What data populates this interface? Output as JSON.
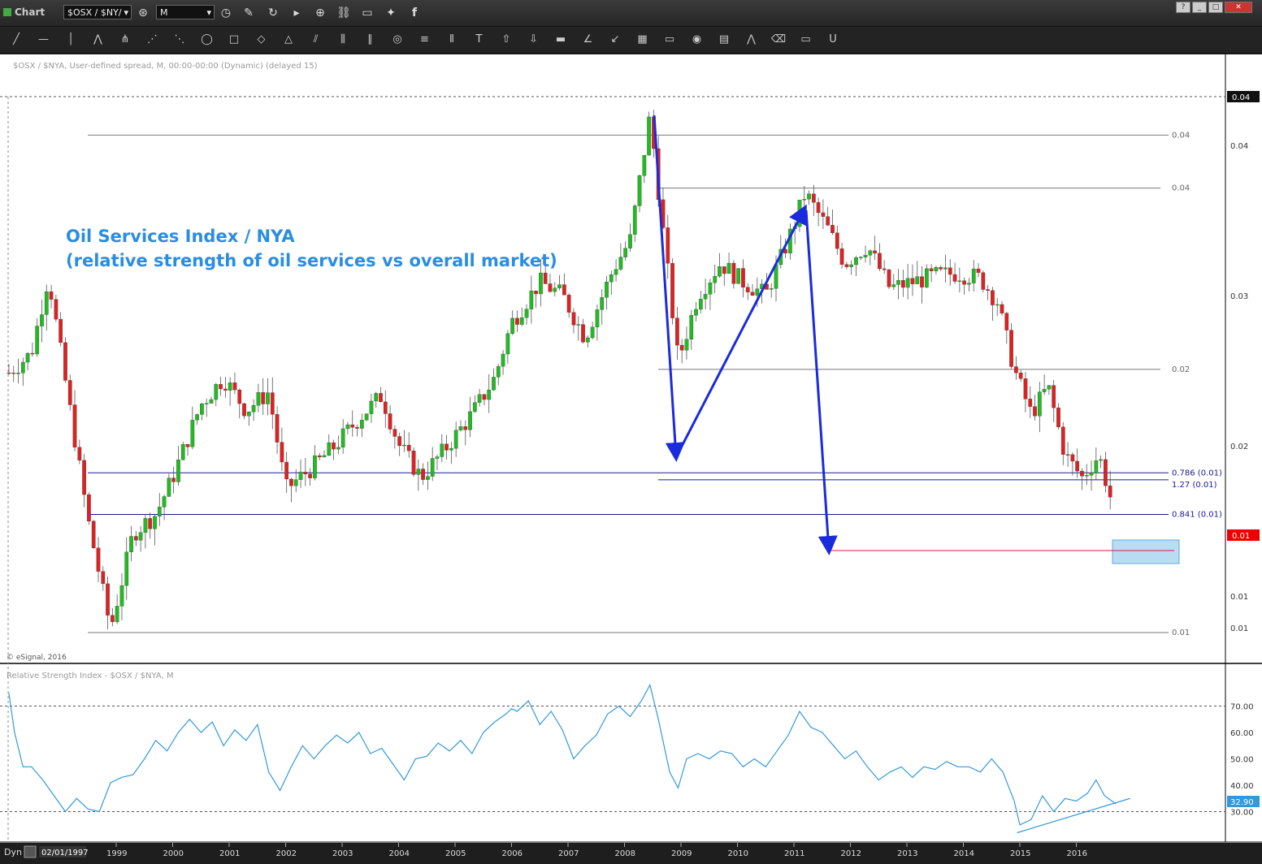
{
  "titlebar": {
    "app": "Chart",
    "symbol": "$OSX / $NY/",
    "interval": "M",
    "help": "?",
    "min": "_",
    "max": "□",
    "close": "✕"
  },
  "toolbar": {
    "tools": [
      "line",
      "horizontal-line",
      "vertical-line",
      "polyline",
      "pitchfork",
      "fan",
      "gann-fan",
      "ellipse",
      "rectangle",
      "eraser-shape",
      "triangle",
      "channel",
      "bars",
      "parallel",
      "circles",
      "levels",
      "cycles",
      "text",
      "arrow-up",
      "arrow-down",
      "fill",
      "angle",
      "regression",
      "grid",
      "mob",
      "eye",
      "pti",
      "zigzag",
      "eraser",
      "comment",
      "magnet"
    ]
  },
  "main_panel": {
    "info": "$OSX / $NYA, User-defined spread, M, 00:00-00:00 (Dynamic) (delayed 15)",
    "annotation_line1": "Oil Services Index / NYA",
    "annotation_line2": "(relative strength of oil services vs overall market)",
    "copyright": "© eSignal, 2016",
    "last_price_label": "0.01",
    "top_label": "0.04"
  },
  "rsi_panel": {
    "info": "Relative Strength Index - $OSX / $NYA, M",
    "last_label": "32.90"
  },
  "footer": {
    "mode": "Dyn",
    "date": "02/01/1997"
  },
  "colors": {
    "up": "#22bb22",
    "down": "#dd2222",
    "rsi": "#3399dd",
    "arrow": "#1a2bdd",
    "annotation": "#2a8ee0",
    "fib": "#777777",
    "fib_blue": "#1a1a99",
    "target": "#a8d4f0"
  },
  "chart_data": [
    {
      "type": "candlestick",
      "title": "",
      "x_ticks": [
        "1999",
        "2000",
        "2001",
        "2002",
        "2003",
        "2004",
        "2005",
        "2006",
        "2007",
        "2008",
        "2009",
        "2010",
        "2011",
        "2012",
        "2013",
        "2014",
        "2015",
        "2016"
      ],
      "y_scale": "log",
      "y_ticks": [
        "0.04",
        "0.04",
        "0.03",
        "0.02",
        "0.01",
        "0.01"
      ],
      "fib_levels": [
        {
          "label": "0.04",
          "value": 0.04
        },
        {
          "label": "0.04",
          "value": 0.034
        },
        {
          "label": "0.02",
          "value": 0.0195
        },
        {
          "label": "0.786 (0.01)",
          "value": 0.0142
        },
        {
          "label": "1.27 (0.01)",
          "value": 0.0139
        },
        {
          "label": "0.841 (0.01)",
          "value": 0.0125
        },
        {
          "label": "0.01",
          "value": 0.0087
        }
      ],
      "series_close": [
        [
          1997.1,
          0.0193
        ],
        [
          1997.5,
          0.0205
        ],
        [
          1997.8,
          0.026
        ],
        [
          1998.1,
          0.0188
        ],
        [
          1998.5,
          0.0123
        ],
        [
          1998.9,
          0.0088
        ],
        [
          1999.3,
          0.0118
        ],
        [
          1999.7,
          0.0125
        ],
        [
          2000.0,
          0.014
        ],
        [
          2000.5,
          0.0175
        ],
        [
          2000.9,
          0.019
        ],
        [
          2001.3,
          0.0172
        ],
        [
          2001.7,
          0.0182
        ],
        [
          2002.0,
          0.0135
        ],
        [
          2002.5,
          0.0145
        ],
        [
          2002.9,
          0.0155
        ],
        [
          2003.3,
          0.0168
        ],
        [
          2003.7,
          0.018
        ],
        [
          2004.0,
          0.0155
        ],
        [
          2004.4,
          0.014
        ],
        [
          2004.8,
          0.0152
        ],
        [
          2005.3,
          0.017
        ],
        [
          2005.7,
          0.019
        ],
        [
          2006.0,
          0.0225
        ],
        [
          2006.5,
          0.0255
        ],
        [
          2006.9,
          0.0245
        ],
        [
          2007.3,
          0.0215
        ],
        [
          2007.8,
          0.0265
        ],
        [
          2008.1,
          0.029
        ],
        [
          2008.45,
          0.0425
        ],
        [
          2008.7,
          0.029
        ],
        [
          2008.95,
          0.02
        ],
        [
          2009.3,
          0.0245
        ],
        [
          2009.7,
          0.027
        ],
        [
          2010.1,
          0.0255
        ],
        [
          2010.5,
          0.0245
        ],
        [
          2010.9,
          0.029
        ],
        [
          2011.2,
          0.0335
        ],
        [
          2011.6,
          0.03
        ],
        [
          2011.9,
          0.027
        ],
        [
          2012.3,
          0.0285
        ],
        [
          2012.7,
          0.025
        ],
        [
          2013.1,
          0.0255
        ],
        [
          2013.5,
          0.026
        ],
        [
          2013.9,
          0.0262
        ],
        [
          2014.3,
          0.0258
        ],
        [
          2014.6,
          0.024
        ],
        [
          2014.9,
          0.0195
        ],
        [
          2015.2,
          0.017
        ],
        [
          2015.5,
          0.0185
        ],
        [
          2015.8,
          0.015
        ],
        [
          2016.1,
          0.014
        ],
        [
          2016.4,
          0.015
        ],
        [
          2016.6,
          0.0132
        ]
      ]
    },
    {
      "type": "line",
      "title": "",
      "y_ticks": [
        "70.00",
        "60.00",
        "50.00",
        "40.00",
        "30.00"
      ],
      "guides": [
        70,
        30
      ],
      "ylim": [
        20,
        80
      ],
      "values": [
        [
          1997.1,
          75
        ],
        [
          1997.2,
          60
        ],
        [
          1997.35,
          47
        ],
        [
          1997.5,
          47
        ],
        [
          1997.7,
          42
        ],
        [
          1997.9,
          36
        ],
        [
          1998.1,
          30
        ],
        [
          1998.3,
          35
        ],
        [
          1998.5,
          31
        ],
        [
          1998.7,
          30
        ],
        [
          1998.9,
          41
        ],
        [
          1999.1,
          43
        ],
        [
          1999.3,
          44
        ],
        [
          1999.5,
          50
        ],
        [
          1999.7,
          57
        ],
        [
          1999.9,
          53
        ],
        [
          2000.1,
          60
        ],
        [
          2000.3,
          65
        ],
        [
          2000.5,
          60
        ],
        [
          2000.7,
          64
        ],
        [
          2000.9,
          55
        ],
        [
          2001.1,
          61
        ],
        [
          2001.3,
          57
        ],
        [
          2001.5,
          63
        ],
        [
          2001.7,
          45
        ],
        [
          2001.9,
          38
        ],
        [
          2002.1,
          47
        ],
        [
          2002.3,
          55
        ],
        [
          2002.5,
          50
        ],
        [
          2002.7,
          55
        ],
        [
          2002.9,
          59
        ],
        [
          2003.1,
          56
        ],
        [
          2003.3,
          60
        ],
        [
          2003.5,
          52
        ],
        [
          2003.7,
          54
        ],
        [
          2003.9,
          48
        ],
        [
          2004.1,
          42
        ],
        [
          2004.3,
          50
        ],
        [
          2004.5,
          51
        ],
        [
          2004.7,
          56
        ],
        [
          2004.9,
          53
        ],
        [
          2005.1,
          57
        ],
        [
          2005.3,
          52
        ],
        [
          2005.5,
          60
        ],
        [
          2005.7,
          64
        ],
        [
          2005.9,
          67
        ],
        [
          2006.0,
          69
        ],
        [
          2006.1,
          68
        ],
        [
          2006.3,
          72
        ],
        [
          2006.5,
          63
        ],
        [
          2006.7,
          68
        ],
        [
          2006.9,
          61
        ],
        [
          2007.1,
          50
        ],
        [
          2007.3,
          55
        ],
        [
          2007.5,
          59
        ],
        [
          2007.7,
          67
        ],
        [
          2007.9,
          70
        ],
        [
          2008.1,
          66
        ],
        [
          2008.3,
          72
        ],
        [
          2008.45,
          78
        ],
        [
          2008.6,
          65
        ],
        [
          2008.8,
          45
        ],
        [
          2008.95,
          39
        ],
        [
          2009.1,
          50
        ],
        [
          2009.3,
          52
        ],
        [
          2009.5,
          50
        ],
        [
          2009.7,
          53
        ],
        [
          2009.9,
          52
        ],
        [
          2010.1,
          47
        ],
        [
          2010.3,
          50
        ],
        [
          2010.5,
          47
        ],
        [
          2010.7,
          53
        ],
        [
          2010.9,
          59
        ],
        [
          2011.1,
          68
        ],
        [
          2011.3,
          62
        ],
        [
          2011.5,
          60
        ],
        [
          2011.7,
          55
        ],
        [
          2011.9,
          50
        ],
        [
          2012.1,
          53
        ],
        [
          2012.3,
          47
        ],
        [
          2012.5,
          42
        ],
        [
          2012.7,
          45
        ],
        [
          2012.9,
          47
        ],
        [
          2013.1,
          43
        ],
        [
          2013.3,
          47
        ],
        [
          2013.5,
          46
        ],
        [
          2013.7,
          49
        ],
        [
          2013.9,
          47
        ],
        [
          2014.1,
          47
        ],
        [
          2014.3,
          45
        ],
        [
          2014.5,
          50
        ],
        [
          2014.7,
          45
        ],
        [
          2014.9,
          34
        ],
        [
          2015.0,
          25
        ],
        [
          2015.2,
          27
        ],
        [
          2015.4,
          36
        ],
        [
          2015.6,
          30
        ],
        [
          2015.8,
          35
        ],
        [
          2016.0,
          34
        ],
        [
          2016.2,
          37
        ],
        [
          2016.35,
          42
        ],
        [
          2016.5,
          36
        ],
        [
          2016.7,
          32.9
        ]
      ],
      "trendline": [
        [
          2014.95,
          22
        ],
        [
          2016.95,
          35
        ]
      ]
    }
  ]
}
